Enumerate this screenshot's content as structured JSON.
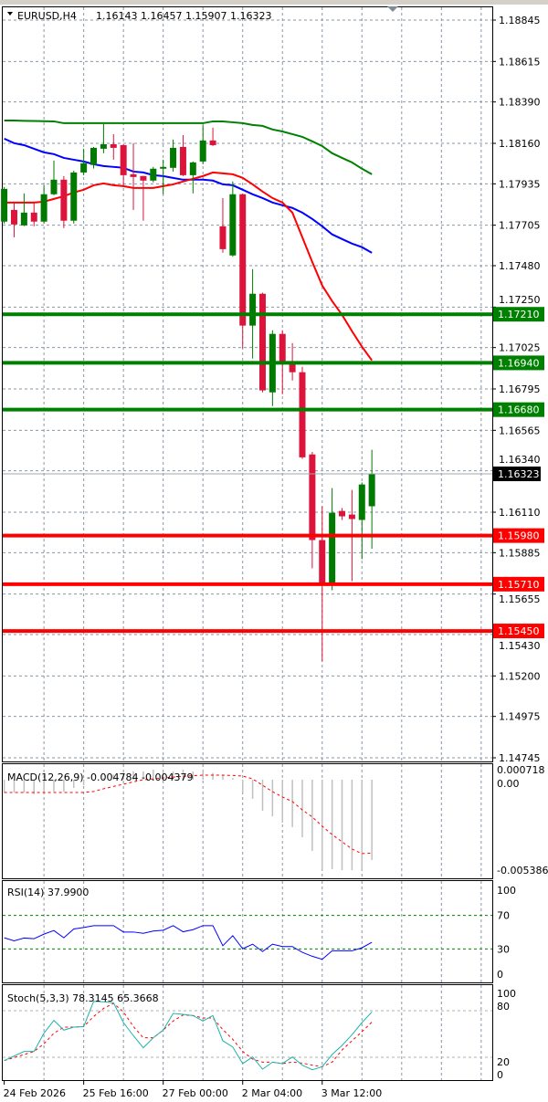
{
  "header": {
    "menu_icon": "triangle-down-icon",
    "symbol": "EURUSD,H4",
    "ohlc": "1.16143 1.16457 1.15907 1.16323",
    "shift_marker_icon": "triangle-down-icon"
  },
  "colors": {
    "bull": "#007a00",
    "bear": "#dc143c",
    "ma_slow": "#008000",
    "ma_mid": "#0000ff",
    "ma_fast": "#ff0000",
    "support": "#ff0000",
    "resistance": "#008000",
    "rsi": "#0000ff",
    "stoch_main": "#20b2aa",
    "stoch_signal": "#ff0000",
    "macd_hist": "#c0c0c0",
    "macd_signal": "#ff0000",
    "grid": "#8896a6"
  },
  "chart_data": [
    {
      "type": "candlestick",
      "title": "EURUSD,H4",
      "ylim": [
        1.14745,
        1.18845
      ],
      "y_ticks": [
        "1.18845",
        "1.18615",
        "1.18390",
        "1.18160",
        "1.17935",
        "1.17705",
        "1.17480",
        "1.17250",
        "1.17025",
        "1.16795",
        "1.16565",
        "1.16340",
        "1.16110",
        "1.15885",
        "1.15655",
        "1.15430",
        "1.15200",
        "1.14975",
        "1.14745"
      ],
      "x_labels": [
        {
          "index": 0,
          "label": "24 Feb 2026"
        },
        {
          "index": 8,
          "label": "25 Feb 16:00"
        },
        {
          "index": 16,
          "label": "27 Feb 00:00"
        },
        {
          "index": 24,
          "label": "2 Mar 04:00"
        },
        {
          "index": 32,
          "label": "3 Mar 12:00"
        }
      ],
      "grid": true,
      "candles": [
        [
          1.17725,
          1.17917,
          1.17714,
          1.17907
        ],
        [
          1.1779,
          1.17826,
          1.17638,
          1.17709
        ],
        [
          1.17704,
          1.17882,
          1.177,
          1.17775
        ],
        [
          1.17775,
          1.17826,
          1.17699,
          1.17725
        ],
        [
          1.17725,
          1.17927,
          1.17714,
          1.17877
        ],
        [
          1.17877,
          1.18064,
          1.17872,
          1.17958
        ],
        [
          1.17958,
          1.17978,
          1.17689,
          1.1773
        ],
        [
          1.1773,
          1.18008,
          1.17714,
          1.17998
        ],
        [
          1.17998,
          1.1813,
          1.17983,
          1.18049
        ],
        [
          1.1804,
          1.1814,
          1.1802,
          1.18135
        ],
        [
          1.1813,
          1.18267,
          1.18105,
          1.18155
        ],
        [
          1.18155,
          1.18211,
          1.18069,
          1.18135
        ],
        [
          1.1815,
          1.18155,
          1.17927,
          1.17983
        ],
        [
          1.17988,
          1.18161,
          1.1779,
          1.17973
        ],
        [
          1.17978,
          1.1798,
          1.1773,
          1.17953
        ],
        [
          1.17953,
          1.18029,
          1.17943,
          1.18019
        ],
        [
          1.18019,
          1.18069,
          1.17877,
          1.18029
        ],
        [
          1.18024,
          1.18181,
          1.18003,
          1.18135
        ],
        [
          1.1814,
          1.18206,
          1.17978,
          1.17983
        ],
        [
          1.17983,
          1.18059,
          1.17882,
          1.18054
        ],
        [
          1.18059,
          1.18262,
          1.18044,
          1.18176
        ],
        [
          1.18176,
          1.18247,
          1.18145,
          1.1815
        ],
        [
          1.17699,
          1.17856,
          1.17552,
          1.17572
        ],
        [
          1.17537,
          1.17948,
          1.1753,
          1.17877
        ],
        [
          1.17877,
          1.1788,
          1.1702,
          1.17147
        ],
        [
          1.17147,
          1.17461,
          1.16964,
          1.17324
        ],
        [
          1.17324,
          1.1733,
          1.16776,
          1.16787
        ],
        [
          1.16776,
          1.17121,
          1.167,
          1.17101
        ],
        [
          1.17101,
          1.17121,
          1.16766,
          1.16934
        ],
        [
          1.16939,
          1.1705,
          1.16842,
          1.16888
        ],
        [
          1.16888,
          1.16918,
          1.16406,
          1.16415
        ],
        [
          1.16431,
          1.16445,
          1.15798,
          1.15955
        ],
        [
          1.15955,
          1.16143,
          1.15281,
          1.15707
        ],
        [
          1.15707,
          1.16244,
          1.15676,
          1.16107
        ],
        [
          1.16117,
          1.16133,
          1.16067,
          1.16087
        ],
        [
          1.16097,
          1.16234,
          1.15727,
          1.16072
        ],
        [
          1.16067,
          1.16275,
          1.15849,
          1.16264
        ],
        [
          1.16143,
          1.16457,
          1.15907,
          1.16323
        ]
      ],
      "moving_averages": [
        {
          "color_key": "ma_slow",
          "values": [
            1.18287,
            1.18287,
            1.18285,
            1.18284,
            1.18283,
            1.18282,
            1.18272,
            1.18272,
            1.18272,
            1.18272,
            1.18272,
            1.18272,
            1.18272,
            1.18272,
            1.18272,
            1.18272,
            1.18272,
            1.18272,
            1.18272,
            1.18272,
            1.18272,
            1.18282,
            1.18282,
            1.18277,
            1.18272,
            1.18262,
            1.18257,
            1.18237,
            1.18226,
            1.18211,
            1.18196,
            1.18171,
            1.18145,
            1.18105,
            1.18079,
            1.18054,
            1.18019,
            1.17988
          ]
        },
        {
          "color_key": "ma_mid",
          "values": [
            1.18186,
            1.18161,
            1.1815,
            1.1813,
            1.1811,
            1.181,
            1.18079,
            1.18069,
            1.18059,
            1.18044,
            1.18034,
            1.18029,
            1.18024,
            1.18003,
            1.17998,
            1.17983,
            1.17978,
            1.17968,
            1.17958,
            1.17958,
            1.17958,
            1.17953,
            1.17932,
            1.17927,
            1.17902,
            1.17877,
            1.17856,
            1.17831,
            1.17816,
            1.17801,
            1.17775,
            1.1774,
            1.17699,
            1.17654,
            1.17628,
            1.17603,
            1.17583,
            1.17552
          ]
        },
        {
          "color_key": "ma_fast",
          "values": [
            1.17831,
            1.17831,
            1.17831,
            1.17831,
            1.17836,
            1.17851,
            1.17866,
            1.17887,
            1.17902,
            1.17927,
            1.17937,
            1.17927,
            1.17922,
            1.17912,
            1.17912,
            1.17912,
            1.17922,
            1.17932,
            1.17948,
            1.17963,
            1.17978,
            1.17998,
            1.17993,
            1.17988,
            1.17968,
            1.17932,
            1.17892,
            1.17856,
            1.17831,
            1.17775,
            1.17638,
            1.17501,
            1.1737,
            1.17283,
            1.17207,
            1.17116,
            1.1703,
            1.16954
          ]
        }
      ],
      "levels": [
        {
          "price": "1.17210",
          "kind": "resistance"
        },
        {
          "price": "1.16940",
          "kind": "resistance"
        },
        {
          "price": "1.16680",
          "kind": "resistance"
        },
        {
          "price": "1.15980",
          "kind": "support"
        },
        {
          "price": "1.15710",
          "kind": "support"
        },
        {
          "price": "1.15450",
          "kind": "support"
        }
      ],
      "current_price": "1.16323"
    },
    {
      "type": "bar",
      "title": "MACD(12,26,9) -0.004784 -0.004379",
      "ylim": [
        -0.005386,
        0.000718
      ],
      "y_ticks": [
        "0.000718",
        "0.00",
        "-0.005386"
      ],
      "histogram": [
        -0.00076,
        -0.00076,
        -0.00076,
        -0.00087,
        -0.00082,
        -0.00071,
        -0.00071,
        -0.00049,
        -0.00033,
        -0.0001,
        0.0001,
        0.0003,
        0.0004,
        0.0005,
        0.0005,
        0.0006,
        0.0005,
        0.0005,
        0.0006,
        0.0005,
        0.0005,
        0.0004,
        0.0003,
        0.0001,
        -0.00076,
        -0.00114,
        -0.00185,
        -0.00218,
        -0.00256,
        -0.00283,
        -0.00343,
        -0.00424,
        -0.00533,
        -0.00533,
        -0.00539,
        -0.00539,
        -0.00537,
        -0.004784
      ],
      "signal": [
        -0.00076,
        -0.00076,
        -0.00076,
        -0.00076,
        -0.00076,
        -0.00076,
        -0.00076,
        -0.00076,
        -0.00076,
        -0.0007,
        -0.00054,
        -0.0004,
        -0.00027,
        -0.00013,
        0.0,
        5e-05,
        0.0001,
        0.00015,
        0.0002,
        0.00024,
        0.00027,
        0.00027,
        0.00027,
        0.00025,
        0.00022,
        5e-05,
        -0.00033,
        -0.00071,
        -0.00103,
        -0.0013,
        -0.0018,
        -0.00222,
        -0.00277,
        -0.00327,
        -0.0037,
        -0.00413,
        -0.0044,
        -0.004379
      ]
    },
    {
      "type": "line",
      "title": "RSI(14) 37.9900",
      "ylim": [
        0,
        100
      ],
      "y_ticks": [
        "100",
        "70",
        "30",
        "0"
      ],
      "levels": [
        70,
        30
      ],
      "values": [
        43.3,
        39.7,
        43,
        42.2,
        47.7,
        52,
        43.3,
        53.8,
        55.6,
        57.8,
        57.8,
        57.8,
        50.2,
        50.2,
        48.7,
        51.3,
        52.3,
        57.8,
        50.5,
        53,
        57.8,
        57.8,
        33.9,
        45.8,
        30.3,
        35.7,
        27,
        35.7,
        32.9,
        32.9,
        26,
        21.3,
        17.7,
        27.8,
        27.8,
        27.8,
        31.4,
        37.99
      ]
    },
    {
      "type": "line",
      "title": "Stoch(5,3,3) 78.3145 65.3668",
      "ylim": [
        0,
        100
      ],
      "y_ticks": [
        "100",
        "80",
        "20",
        "0"
      ],
      "levels": [
        80,
        20
      ],
      "main": [
        15.7,
        21.6,
        27.5,
        27.5,
        51,
        67.5,
        55,
        58.8,
        59.6,
        92,
        91.4,
        90.2,
        64.7,
        47.8,
        32.2,
        45.1,
        55,
        76.5,
        75.3,
        73.7,
        66.7,
        73.7,
        41.2,
        33.3,
        11.8,
        20.4,
        4.7,
        13.7,
        11.8,
        20.4,
        9.8,
        3.9,
        7.8,
        23.5,
        35.3,
        49,
        64.7,
        78.31
      ],
      "signal": [
        15.7,
        19.6,
        23.5,
        27.5,
        37.3,
        51,
        58.8,
        58.8,
        59.6,
        72.5,
        83,
        89.4,
        78.4,
        59.6,
        45.1,
        45.1,
        55,
        66.7,
        74.5,
        73.7,
        70.6,
        70.6,
        55.7,
        43.1,
        27.5,
        17.6,
        13.7,
        13.7,
        11.8,
        13.7,
        12.5,
        9.8,
        7.8,
        13.7,
        29.4,
        41.2,
        52.9,
        65.37
      ]
    }
  ]
}
